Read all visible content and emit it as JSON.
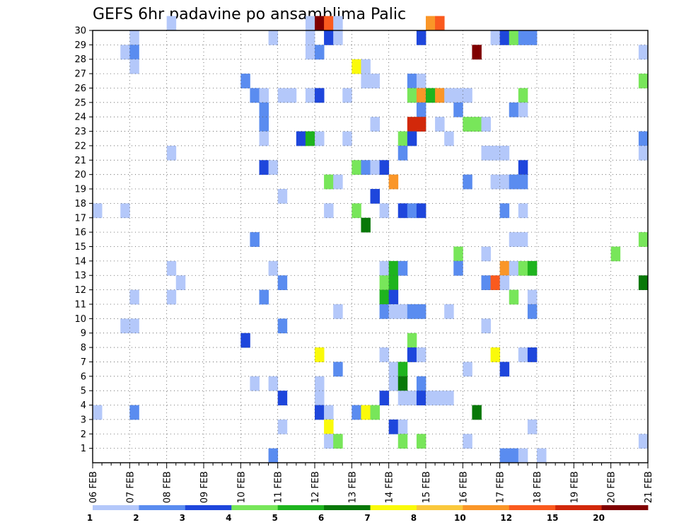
{
  "chart_data": {
    "type": "heatmap",
    "title": "GEFS 6hr padavine po ansamblima Palic",
    "y_ticks": [
      "1",
      "2",
      "3",
      "4",
      "5",
      "6",
      "7",
      "8",
      "9",
      "10",
      "11",
      "12",
      "13",
      "14",
      "15",
      "16",
      "17",
      "18",
      "19",
      "20",
      "21",
      "22",
      "23",
      "24",
      "25",
      "26",
      "27",
      "28",
      "29",
      "30"
    ],
    "x_ticks": [
      "06 FEB",
      "07 FEB",
      "08 FEB",
      "09 FEB",
      "10 FEB",
      "11 FEB",
      "12 FEB",
      "13 FEB",
      "14 FEB",
      "15 FEB",
      "16 FEB",
      "17 FEB",
      "18 FEB",
      "19 FEB",
      "20 FEB",
      "21 FEB"
    ],
    "x_steps_per_day": 4,
    "xlim": [
      0,
      60
    ],
    "ylim": [
      0,
      30
    ],
    "grid": true,
    "levels": [
      "1",
      "2",
      "3",
      "4",
      "5",
      "6",
      "7",
      "8",
      "10",
      "12",
      "15",
      "20"
    ],
    "level_colors": [
      "#b4c8fa",
      "#5a8cf0",
      "#1e46dc",
      "#78e65a",
      "#1eb41e",
      "#087808",
      "#fafa0a",
      "#fac83c",
      "#fa9628",
      "#fa5a1e",
      "#d2280a",
      "#800000"
    ],
    "cells": [
      [
        8,
        30,
        0
      ],
      [
        23,
        30,
        0
      ],
      [
        24,
        30,
        11
      ],
      [
        25,
        30,
        9
      ],
      [
        26,
        30,
        0
      ],
      [
        36,
        30,
        8
      ],
      [
        37,
        30,
        9
      ],
      [
        4,
        29,
        0
      ],
      [
        19,
        29,
        0
      ],
      [
        23,
        29,
        0
      ],
      [
        25,
        29,
        2
      ],
      [
        26,
        29,
        0
      ],
      [
        35,
        29,
        2
      ],
      [
        43,
        29,
        0
      ],
      [
        44,
        29,
        2
      ],
      [
        45,
        29,
        3
      ],
      [
        46,
        29,
        1
      ],
      [
        47,
        29,
        1
      ],
      [
        3,
        28,
        0
      ],
      [
        4,
        28,
        1
      ],
      [
        23,
        28,
        0
      ],
      [
        24,
        28,
        1
      ],
      [
        41,
        28,
        11
      ],
      [
        59,
        28,
        0
      ],
      [
        4,
        27,
        0
      ],
      [
        28,
        27,
        6
      ],
      [
        29,
        27,
        0
      ],
      [
        16,
        26,
        1
      ],
      [
        29,
        26,
        0
      ],
      [
        30,
        26,
        0
      ],
      [
        34,
        26,
        1
      ],
      [
        35,
        26,
        0
      ],
      [
        59,
        26,
        3
      ],
      [
        17,
        25,
        1
      ],
      [
        18,
        25,
        0
      ],
      [
        20,
        25,
        0
      ],
      [
        21,
        25,
        0
      ],
      [
        23,
        25,
        0
      ],
      [
        24,
        25,
        2
      ],
      [
        27,
        25,
        0
      ],
      [
        34,
        25,
        3
      ],
      [
        35,
        25,
        8
      ],
      [
        36,
        25,
        4
      ],
      [
        37,
        25,
        8
      ],
      [
        38,
        25,
        0
      ],
      [
        39,
        25,
        0
      ],
      [
        40,
        25,
        0
      ],
      [
        46,
        25,
        3
      ],
      [
        18,
        24,
        1
      ],
      [
        35,
        24,
        1
      ],
      [
        39,
        24,
        1
      ],
      [
        45,
        24,
        1
      ],
      [
        46,
        24,
        0
      ],
      [
        18,
        23,
        1
      ],
      [
        30,
        23,
        0
      ],
      [
        34,
        23,
        10
      ],
      [
        35,
        23,
        10
      ],
      [
        37,
        23,
        0
      ],
      [
        40,
        23,
        3
      ],
      [
        41,
        23,
        3
      ],
      [
        42,
        23,
        0
      ],
      [
        18,
        22,
        0
      ],
      [
        22,
        22,
        2
      ],
      [
        23,
        22,
        4
      ],
      [
        24,
        22,
        0
      ],
      [
        27,
        22,
        0
      ],
      [
        33,
        22,
        3
      ],
      [
        34,
        22,
        2
      ],
      [
        38,
        22,
        0
      ],
      [
        59,
        22,
        1
      ],
      [
        8,
        21,
        0
      ],
      [
        33,
        21,
        1
      ],
      [
        42,
        21,
        0
      ],
      [
        43,
        21,
        0
      ],
      [
        44,
        21,
        0
      ],
      [
        59,
        21,
        0
      ],
      [
        18,
        20,
        2
      ],
      [
        19,
        20,
        0
      ],
      [
        28,
        20,
        3
      ],
      [
        29,
        20,
        1
      ],
      [
        30,
        20,
        0
      ],
      [
        31,
        20,
        2
      ],
      [
        46,
        20,
        2
      ],
      [
        25,
        19,
        3
      ],
      [
        26,
        19,
        0
      ],
      [
        32,
        19,
        8
      ],
      [
        40,
        19,
        1
      ],
      [
        43,
        19,
        0
      ],
      [
        44,
        19,
        0
      ],
      [
        45,
        19,
        1
      ],
      [
        46,
        19,
        1
      ],
      [
        20,
        18,
        0
      ],
      [
        30,
        18,
        2
      ],
      [
        0,
        17,
        0
      ],
      [
        3,
        17,
        0
      ],
      [
        25,
        17,
        0
      ],
      [
        28,
        17,
        3
      ],
      [
        31,
        17,
        0
      ],
      [
        33,
        17,
        2
      ],
      [
        34,
        17,
        1
      ],
      [
        35,
        17,
        2
      ],
      [
        44,
        17,
        1
      ],
      [
        46,
        17,
        0
      ],
      [
        29,
        16,
        5
      ],
      [
        17,
        15,
        1
      ],
      [
        45,
        15,
        0
      ],
      [
        46,
        15,
        0
      ],
      [
        59,
        15,
        3
      ],
      [
        39,
        14,
        3
      ],
      [
        42,
        14,
        0
      ],
      [
        56,
        14,
        3
      ],
      [
        8,
        13,
        0
      ],
      [
        19,
        13,
        0
      ],
      [
        31,
        13,
        0
      ],
      [
        32,
        13,
        4
      ],
      [
        33,
        13,
        1
      ],
      [
        39,
        13,
        1
      ],
      [
        44,
        13,
        8
      ],
      [
        45,
        13,
        0
      ],
      [
        46,
        13,
        3
      ],
      [
        47,
        13,
        4
      ],
      [
        9,
        12,
        0
      ],
      [
        20,
        12,
        1
      ],
      [
        31,
        12,
        3
      ],
      [
        32,
        12,
        4
      ],
      [
        42,
        12,
        1
      ],
      [
        43,
        12,
        9
      ],
      [
        44,
        12,
        0
      ],
      [
        59,
        12,
        5
      ],
      [
        4,
        11,
        0
      ],
      [
        8,
        11,
        0
      ],
      [
        18,
        11,
        1
      ],
      [
        31,
        11,
        4
      ],
      [
        32,
        11,
        2
      ],
      [
        45,
        11,
        3
      ],
      [
        47,
        11,
        0
      ],
      [
        26,
        10,
        0
      ],
      [
        31,
        10,
        1
      ],
      [
        32,
        10,
        0
      ],
      [
        33,
        10,
        0
      ],
      [
        34,
        10,
        1
      ],
      [
        35,
        10,
        1
      ],
      [
        38,
        10,
        0
      ],
      [
        47,
        10,
        1
      ],
      [
        3,
        9,
        0
      ],
      [
        4,
        9,
        0
      ],
      [
        20,
        9,
        1
      ],
      [
        42,
        9,
        0
      ],
      [
        16,
        8,
        2
      ],
      [
        34,
        8,
        3
      ],
      [
        24,
        7,
        6
      ],
      [
        31,
        7,
        0
      ],
      [
        34,
        7,
        2
      ],
      [
        35,
        7,
        0
      ],
      [
        43,
        7,
        6
      ],
      [
        46,
        7,
        0
      ],
      [
        47,
        7,
        2
      ],
      [
        26,
        6,
        1
      ],
      [
        32,
        6,
        0
      ],
      [
        33,
        6,
        4
      ],
      [
        40,
        6,
        0
      ],
      [
        44,
        6,
        2
      ],
      [
        17,
        5,
        0
      ],
      [
        19,
        5,
        0
      ],
      [
        24,
        5,
        0
      ],
      [
        32,
        5,
        0
      ],
      [
        33,
        5,
        5
      ],
      [
        35,
        5,
        1
      ],
      [
        20,
        4,
        2
      ],
      [
        24,
        4,
        0
      ],
      [
        31,
        4,
        2
      ],
      [
        33,
        4,
        0
      ],
      [
        34,
        4,
        0
      ],
      [
        35,
        4,
        2
      ],
      [
        36,
        4,
        0
      ],
      [
        37,
        4,
        0
      ],
      [
        38,
        4,
        0
      ],
      [
        0,
        3,
        0
      ],
      [
        4,
        3,
        1
      ],
      [
        24,
        3,
        2
      ],
      [
        25,
        3,
        0
      ],
      [
        28,
        3,
        1
      ],
      [
        29,
        3,
        6
      ],
      [
        30,
        3,
        3
      ],
      [
        41,
        3,
        5
      ],
      [
        20,
        2,
        0
      ],
      [
        25,
        2,
        6
      ],
      [
        32,
        2,
        2
      ],
      [
        33,
        2,
        0
      ],
      [
        47,
        2,
        0
      ],
      [
        25,
        1,
        0
      ],
      [
        26,
        1,
        3
      ],
      [
        33,
        1,
        3
      ],
      [
        35,
        1,
        3
      ],
      [
        40,
        1,
        0
      ],
      [
        59,
        1,
        0
      ],
      [
        19,
        0,
        1
      ],
      [
        44,
        0,
        1
      ],
      [
        45,
        0,
        1
      ],
      [
        46,
        0,
        0
      ],
      [
        48,
        0,
        0
      ]
    ]
  }
}
